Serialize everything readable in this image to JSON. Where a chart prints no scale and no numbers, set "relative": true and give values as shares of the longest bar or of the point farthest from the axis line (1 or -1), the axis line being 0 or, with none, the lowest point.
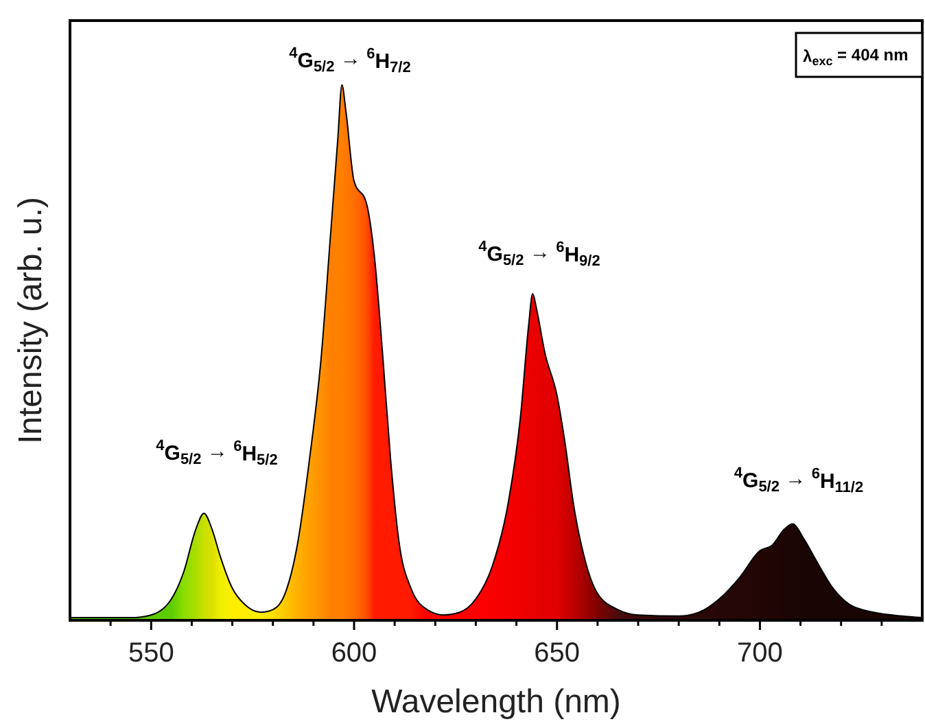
{
  "chart_data": {
    "type": "area",
    "relative": true,
    "xlabel": "Wavelength (nm)",
    "ylabel": "Intensity (arb. u.)",
    "xlim": [
      530,
      740
    ],
    "xticks": [
      {
        "value": 540,
        "label": null
      },
      550,
      {
        "value": 560,
        "label": null
      },
      {
        "value": 570,
        "label": null
      },
      {
        "value": 580,
        "label": null
      },
      {
        "value": 590,
        "label": null
      },
      600,
      {
        "value": 610,
        "label": null
      },
      {
        "value": 620,
        "label": null
      },
      {
        "value": 630,
        "label": null
      },
      {
        "value": 640,
        "label": null
      },
      650,
      {
        "value": 660,
        "label": null
      },
      {
        "value": 670,
        "label": null
      },
      {
        "value": 680,
        "label": null
      },
      {
        "value": 690,
        "label": null
      },
      700,
      {
        "value": 710,
        "label": null
      },
      {
        "value": 720,
        "label": null
      },
      {
        "value": 730,
        "label": null
      }
    ],
    "x": [
      530,
      545,
      550,
      555,
      558,
      561,
      563,
      565,
      567,
      570,
      573,
      577,
      580,
      583,
      586,
      589,
      592,
      594,
      596,
      597,
      598,
      600,
      603,
      605,
      607,
      609,
      611,
      614,
      618,
      622,
      626,
      630,
      634,
      638,
      641,
      643,
      644,
      645,
      647,
      650,
      652,
      654,
      657,
      660,
      665,
      670,
      680,
      685,
      690,
      695,
      700,
      703,
      706,
      708,
      711,
      714,
      718,
      722,
      728,
      735,
      740
    ],
    "series": [
      {
        "values": [
          0.005,
          0.005,
          0.01,
          0.04,
          0.09,
          0.17,
          0.2,
          0.17,
          0.12,
          0.06,
          0.03,
          0.015,
          0.02,
          0.05,
          0.14,
          0.3,
          0.5,
          0.7,
          0.9,
          1.0,
          0.95,
          0.82,
          0.78,
          0.68,
          0.5,
          0.3,
          0.15,
          0.06,
          0.02,
          0.01,
          0.015,
          0.04,
          0.1,
          0.22,
          0.38,
          0.55,
          0.61,
          0.58,
          0.5,
          0.42,
          0.33,
          0.22,
          0.11,
          0.05,
          0.02,
          0.01,
          0.008,
          0.015,
          0.04,
          0.08,
          0.13,
          0.14,
          0.17,
          0.18,
          0.15,
          0.11,
          0.06,
          0.03,
          0.015,
          0.008,
          0.005
        ],
        "colors": [
          "#5ccc00",
          "#5ccc00",
          "#5ccc00",
          "#5ccc00",
          "#88dd00",
          "#aadd00",
          "#c8e000",
          "#dde000",
          "#eeee00",
          "#ffee00",
          "#ffee00",
          "#ffee00",
          "#ffdd00",
          "#ffc800",
          "#ffb000",
          "#ffa000",
          "#ff9000",
          "#ff8000",
          "#ff8000",
          "#ff8000",
          "#ff7800",
          "#ff7000",
          "#ff5000",
          "#ff1a00",
          "#ff1a00",
          "#ff1a00",
          "#ff1a00",
          "#ff1a00",
          "#ff0000",
          "#ff0000",
          "#ff0000",
          "#ff0000",
          "#f80000",
          "#f40000",
          "#f00000",
          "#ec0000",
          "#ea0000",
          "#e80000",
          "#e40000",
          "#e00000",
          "#d00000",
          "#c00000",
          "#a00000",
          "#800000",
          "#4a0c0c",
          "#3a0a0a",
          "#2e0808",
          "#2a0808",
          "#260707",
          "#240606",
          "#220606",
          "#200505",
          "#1e0505",
          "#1c0505",
          "#1a0505",
          "#1a0505",
          "#1a0505",
          "#1a0505",
          "#1a0505",
          "#1a0505",
          "#1a0505"
        ]
      }
    ],
    "annotations": [
      "$^{4}$G$_{5/2}$ → $^{6}$H$_{5/2}$",
      "$^{4}$G$_{5/2}$ → $^{6}$H$_{7/2}$",
      "$^{4}$G$_{5/2}$ → $^{6}$H$_{9/2}$",
      "$^{4}$G$_{5/2}$ → $^{6}$H$_{11/2}$",
      "λ$_{exc}$ = 404 nm"
    ]
  }
}
